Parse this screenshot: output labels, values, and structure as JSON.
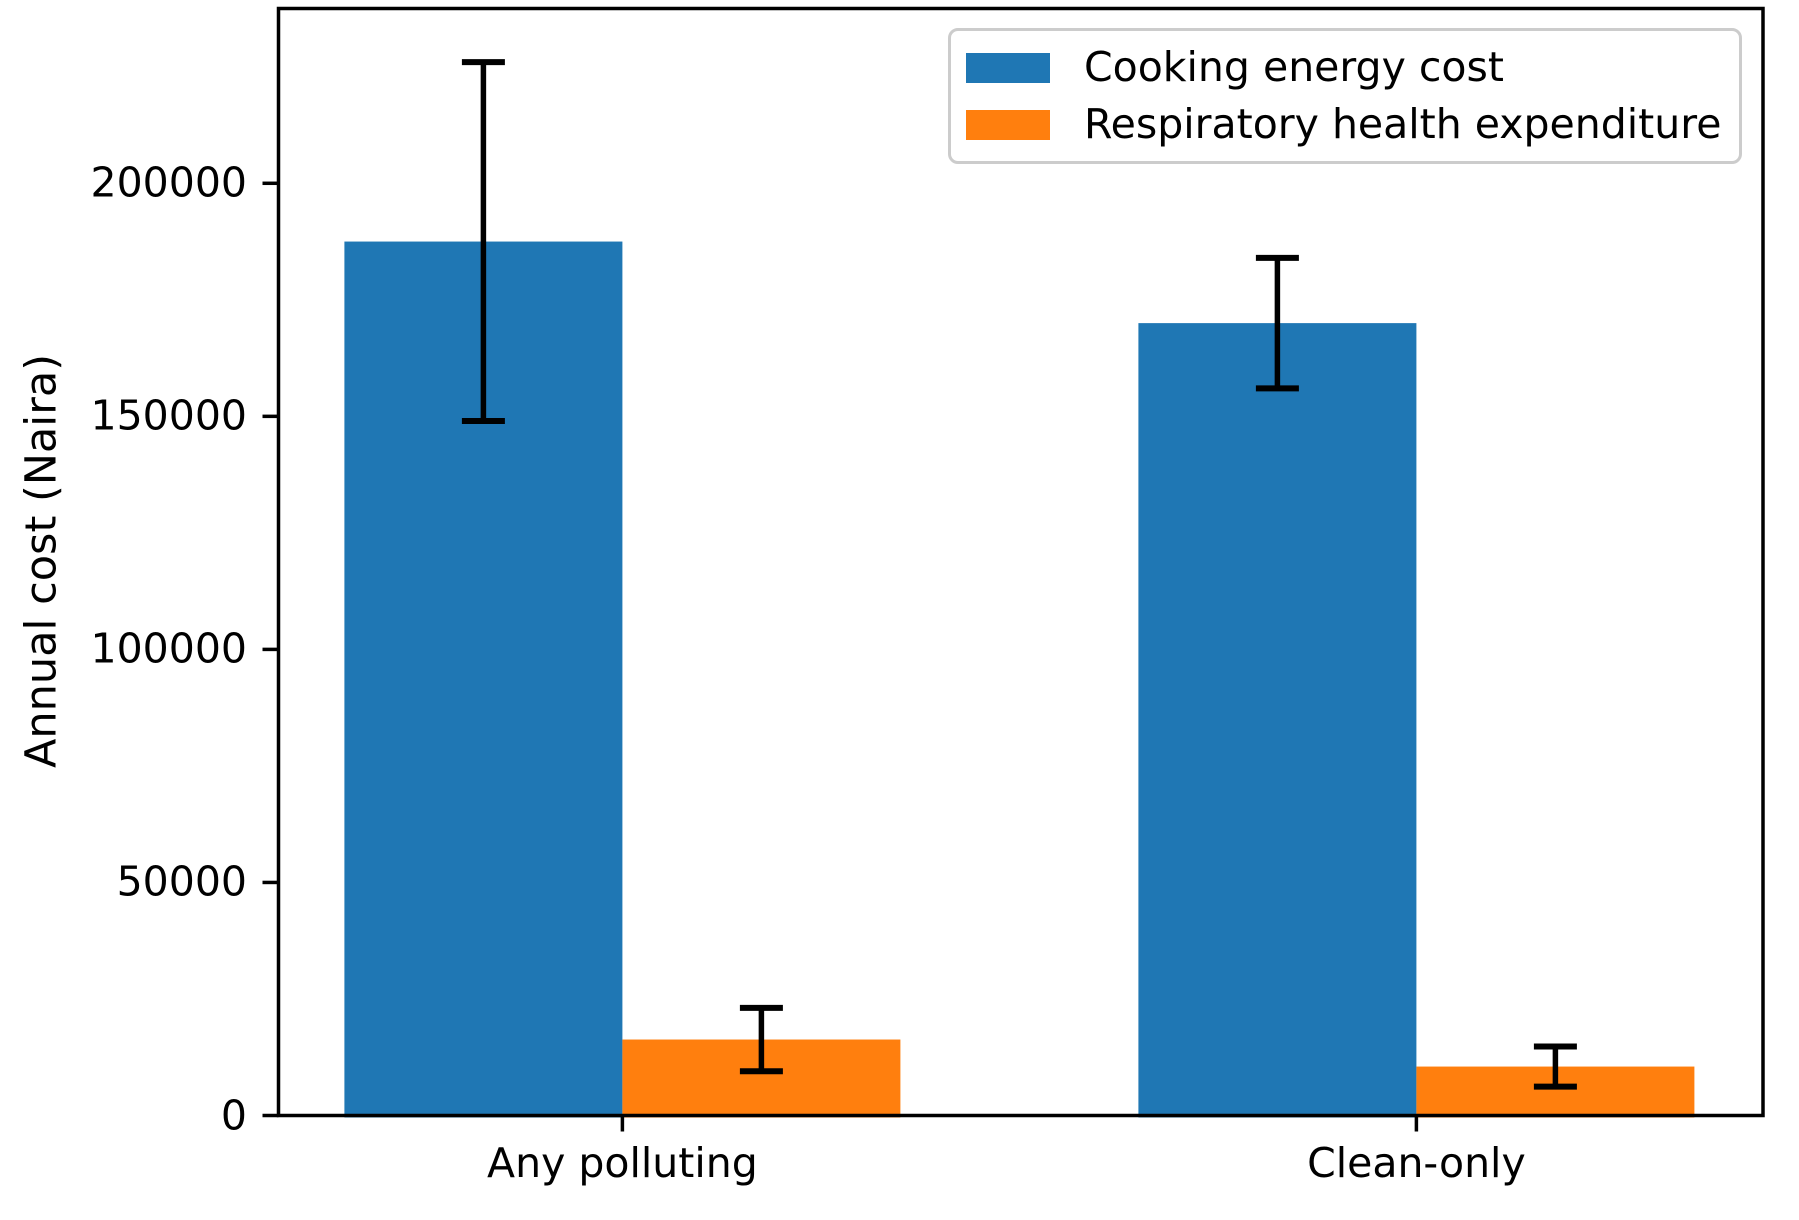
{
  "chart_data": {
    "type": "bar",
    "title": "",
    "xlabel": "",
    "ylabel": "Annual cost (Naira)",
    "categories": [
      "Any polluting",
      "Clean-only"
    ],
    "series": [
      {
        "name": "Cooking energy cost",
        "color": "#1f77b4",
        "values": [
          187500,
          170000
        ],
        "errors": [
          38500,
          14000
        ]
      },
      {
        "name": "Respiratory health expenditure",
        "color": "#ff7f0e",
        "values": [
          16300,
          10500
        ],
        "errors": [
          6800,
          4300
        ]
      }
    ],
    "y_ticks": [
      0,
      50000,
      100000,
      150000,
      200000
    ],
    "y_tick_labels": [
      "0",
      "50000",
      "100000",
      "150000",
      "200000"
    ],
    "ylim": [
      0,
      237500
    ],
    "grid": false,
    "legend_position": "upper right",
    "error_bar_color": "#000000",
    "spine_color": "#000000",
    "background_color": "#ffffff",
    "legend_border_color": "#cccccc"
  }
}
